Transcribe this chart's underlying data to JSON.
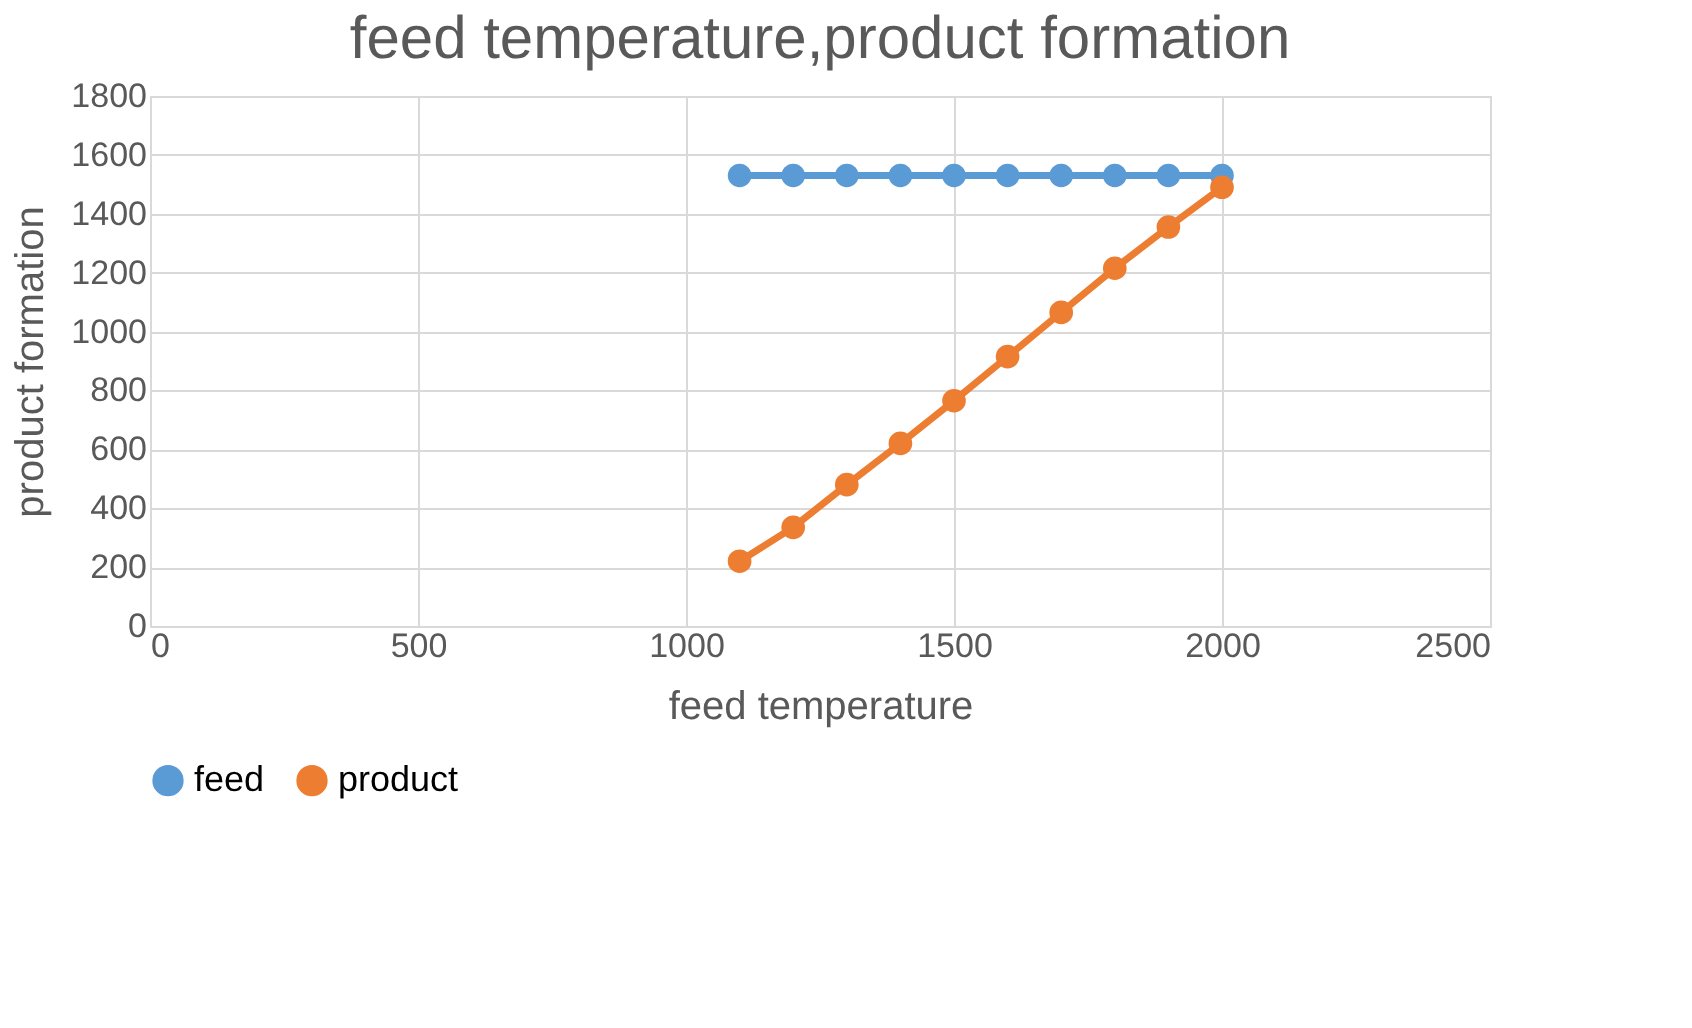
{
  "chart_data": {
    "type": "line",
    "title": "feed temperature,product formation",
    "xlabel": "feed temperature",
    "ylabel": "product formation",
    "x": [
      1100,
      1200,
      1300,
      1400,
      1500,
      1600,
      1700,
      1800,
      1900,
      2000
    ],
    "series": [
      {
        "name": "feed",
        "color": "#5b9bd5",
        "values": [
          1530,
          1530,
          1530,
          1530,
          1530,
          1530,
          1530,
          1530,
          1530,
          1530
        ]
      },
      {
        "name": "product",
        "color": "#ed7d31",
        "values": [
          220,
          335,
          480,
          620,
          765,
          915,
          1065,
          1215,
          1355,
          1490
        ]
      }
    ],
    "xlim": [
      0,
      2500
    ],
    "xticks": [
      0,
      500,
      1000,
      1500,
      2000,
      2500
    ],
    "ylim": [
      0,
      1800
    ],
    "yticks": [
      0,
      200,
      400,
      600,
      800,
      1000,
      1200,
      1400,
      1600,
      1800
    ],
    "grid": true,
    "legend": "bottom",
    "marker": "circle",
    "line_style": "solid"
  }
}
